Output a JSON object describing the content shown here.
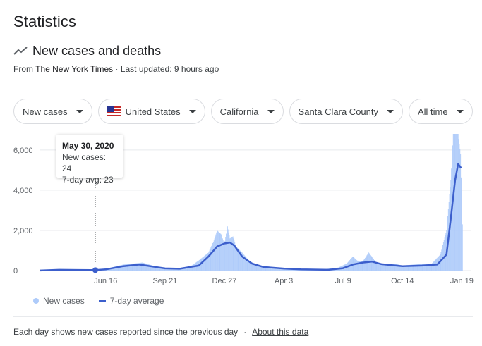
{
  "title": "Statistics",
  "subhead": {
    "label": "New cases and deaths",
    "icon": "trend-icon"
  },
  "source": {
    "prefix": "From ",
    "link": "The New York Times",
    "updated": " · Last updated: 9 hours ago"
  },
  "filters": [
    {
      "label": "New cases"
    },
    {
      "label": "United States",
      "icon": "us-flag-icon"
    },
    {
      "label": "California"
    },
    {
      "label": "Santa Clara County"
    },
    {
      "label": "All time"
    }
  ],
  "tooltip": {
    "date": "May 30, 2020",
    "cases": "New cases: 24",
    "avg": "7-day avg: 23"
  },
  "legend": {
    "cases": "New cases",
    "avg": "7-day average"
  },
  "footer": {
    "note": "Each day shows new cases reported since the previous day",
    "sep": "·",
    "link": "About this data"
  },
  "colors": {
    "bar": "#aecbfa",
    "line": "#3c5fcc",
    "grid": "#e8eaed"
  },
  "chart_data": {
    "type": "bar",
    "title": "",
    "xlabel": "",
    "ylabel": "",
    "ylim": [
      0,
      6800
    ],
    "yticks": [
      0,
      2000,
      4000,
      6000
    ],
    "ytick_labels": [
      "0",
      "2,000",
      "4,000",
      "6,000"
    ],
    "xtick_labels": [
      "Jun 16",
      "Sep 21",
      "Dec 27",
      "Apr 3",
      "Jul 9",
      "Oct 14",
      "Jan 19"
    ],
    "x_start": "2020-03-01",
    "x_end": "2022-01-22",
    "xticks": [
      "2020-06-16",
      "2020-09-21",
      "2020-12-27",
      "2021-04-03",
      "2021-07-09",
      "2021-10-14",
      "2022-01-19"
    ],
    "highlight_date": "2020-05-30",
    "series": [
      {
        "name": "New cases",
        "kind": "bar",
        "points": [
          [
            "2020-03-01",
            10
          ],
          [
            "2020-04-01",
            60
          ],
          [
            "2020-04-15",
            40
          ],
          [
            "2020-05-01",
            30
          ],
          [
            "2020-05-30",
            24
          ],
          [
            "2020-06-16",
            80
          ],
          [
            "2020-07-01",
            200
          ],
          [
            "2020-07-15",
            300
          ],
          [
            "2020-08-01",
            350
          ],
          [
            "2020-08-15",
            400
          ],
          [
            "2020-09-01",
            250
          ],
          [
            "2020-09-21",
            120
          ],
          [
            "2020-10-15",
            100
          ],
          [
            "2020-11-01",
            200
          ],
          [
            "2020-11-15",
            500
          ],
          [
            "2020-12-01",
            900
          ],
          [
            "2020-12-10",
            1500
          ],
          [
            "2020-12-15",
            2000
          ],
          [
            "2020-12-22",
            1800
          ],
          [
            "2020-12-27",
            1300
          ],
          [
            "2021-01-01",
            2200
          ],
          [
            "2021-01-05",
            1600
          ],
          [
            "2021-01-10",
            1700
          ],
          [
            "2021-01-15",
            1200
          ],
          [
            "2021-01-25",
            900
          ],
          [
            "2021-02-05",
            500
          ],
          [
            "2021-02-20",
            250
          ],
          [
            "2021-03-10",
            150
          ],
          [
            "2021-04-03",
            100
          ],
          [
            "2021-05-01",
            80
          ],
          [
            "2021-06-01",
            50
          ],
          [
            "2021-07-01",
            150
          ],
          [
            "2021-07-15",
            350
          ],
          [
            "2021-07-25",
            700
          ],
          [
            "2021-08-01",
            500
          ],
          [
            "2021-08-10",
            450
          ],
          [
            "2021-08-20",
            900
          ],
          [
            "2021-09-01",
            400
          ],
          [
            "2021-09-15",
            300
          ],
          [
            "2021-10-01",
            350
          ],
          [
            "2021-10-14",
            250
          ],
          [
            "2021-11-01",
            300
          ],
          [
            "2021-12-01",
            350
          ],
          [
            "2021-12-15",
            800
          ],
          [
            "2021-12-25",
            2000
          ],
          [
            "2022-01-01",
            4500
          ],
          [
            "2022-01-05",
            6800
          ],
          [
            "2022-01-10",
            6800
          ],
          [
            "2022-01-13",
            6800
          ],
          [
            "2022-01-17",
            5800
          ],
          [
            "2022-01-20",
            2300
          ]
        ]
      },
      {
        "name": "7-day average",
        "kind": "line",
        "points": [
          [
            "2020-03-01",
            5
          ],
          [
            "2020-04-01",
            40
          ],
          [
            "2020-05-01",
            30
          ],
          [
            "2020-05-30",
            23
          ],
          [
            "2020-06-16",
            60
          ],
          [
            "2020-07-15",
            220
          ],
          [
            "2020-08-10",
            300
          ],
          [
            "2020-09-01",
            200
          ],
          [
            "2020-09-21",
            110
          ],
          [
            "2020-10-15",
            90
          ],
          [
            "2020-11-15",
            250
          ],
          [
            "2020-12-01",
            700
          ],
          [
            "2020-12-15",
            1200
          ],
          [
            "2020-12-27",
            1350
          ],
          [
            "2021-01-05",
            1400
          ],
          [
            "2021-01-12",
            1250
          ],
          [
            "2021-01-25",
            700
          ],
          [
            "2021-02-10",
            350
          ],
          [
            "2021-03-01",
            180
          ],
          [
            "2021-04-03",
            100
          ],
          [
            "2021-05-01",
            60
          ],
          [
            "2021-06-15",
            40
          ],
          [
            "2021-07-09",
            120
          ],
          [
            "2021-07-25",
            300
          ],
          [
            "2021-08-10",
            400
          ],
          [
            "2021-08-25",
            450
          ],
          [
            "2021-09-10",
            320
          ],
          [
            "2021-10-14",
            220
          ],
          [
            "2021-11-15",
            250
          ],
          [
            "2021-12-10",
            300
          ],
          [
            "2021-12-25",
            800
          ],
          [
            "2022-01-01",
            2600
          ],
          [
            "2022-01-08",
            4500
          ],
          [
            "2022-01-13",
            5300
          ],
          [
            "2022-01-18",
            5100
          ]
        ]
      }
    ]
  }
}
